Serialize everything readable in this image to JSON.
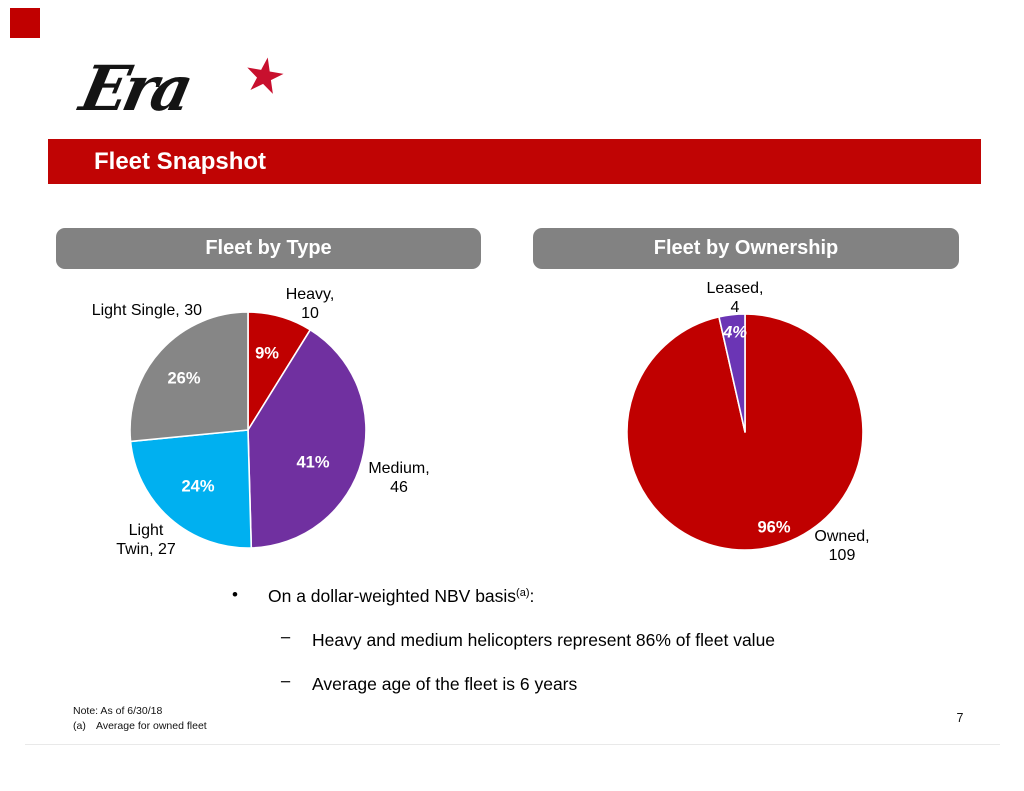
{
  "logo": {
    "text": "Era",
    "star_glyph": "★",
    "star_color": "#c8102e"
  },
  "banner": {
    "title": "Fleet Snapshot",
    "bg_color": "#c00404"
  },
  "chart_data": [
    {
      "type": "pie",
      "title": "Fleet by Type",
      "categories": [
        "Heavy",
        "Medium",
        "Light Twin",
        "Light Single"
      ],
      "values": [
        10,
        46,
        27,
        30
      ],
      "percent_shown": [
        "9%",
        "41%",
        "24%",
        "26%"
      ],
      "colors": [
        "#c00000",
        "#7030a0",
        "#00b0f0",
        "#868686"
      ],
      "callouts": [
        {
          "line1": "Heavy,",
          "line2": "10"
        },
        {
          "line1": "Medium,",
          "line2": "46"
        },
        {
          "line1": "Light",
          "line2": "Twin, 27"
        },
        {
          "line1": "Light Single, 30",
          "line2": ""
        }
      ],
      "legend": "none",
      "start_angle_deg": 0,
      "direction": "clockwise"
    },
    {
      "type": "pie",
      "title": "Fleet by Ownership",
      "categories": [
        "Owned",
        "Leased"
      ],
      "values": [
        109,
        4
      ],
      "percent_shown": [
        "96%",
        "4%"
      ],
      "colors": [
        "#c00000",
        "#6b35b5"
      ],
      "callouts": [
        {
          "line1": "Owned,",
          "line2": "109"
        },
        {
          "line1": "Leased,",
          "line2": "4"
        }
      ],
      "legend": "none",
      "start_angle_deg": 0,
      "direction": "clockwise"
    }
  ],
  "bullets": {
    "glyph": "•",
    "dash": "−",
    "main": "On a dollar-weighted NBV basis",
    "main_sup": "(a)",
    "main_colon": ":",
    "items": [
      "Heavy and medium helicopters represent 86% of fleet value",
      "Average age of the fleet is 6 years"
    ]
  },
  "footer": {
    "note_line1": "Note: As of 6/30/18",
    "note2_marker": "(a)",
    "note2_text": "Average for owned fleet",
    "page_number": "7"
  }
}
